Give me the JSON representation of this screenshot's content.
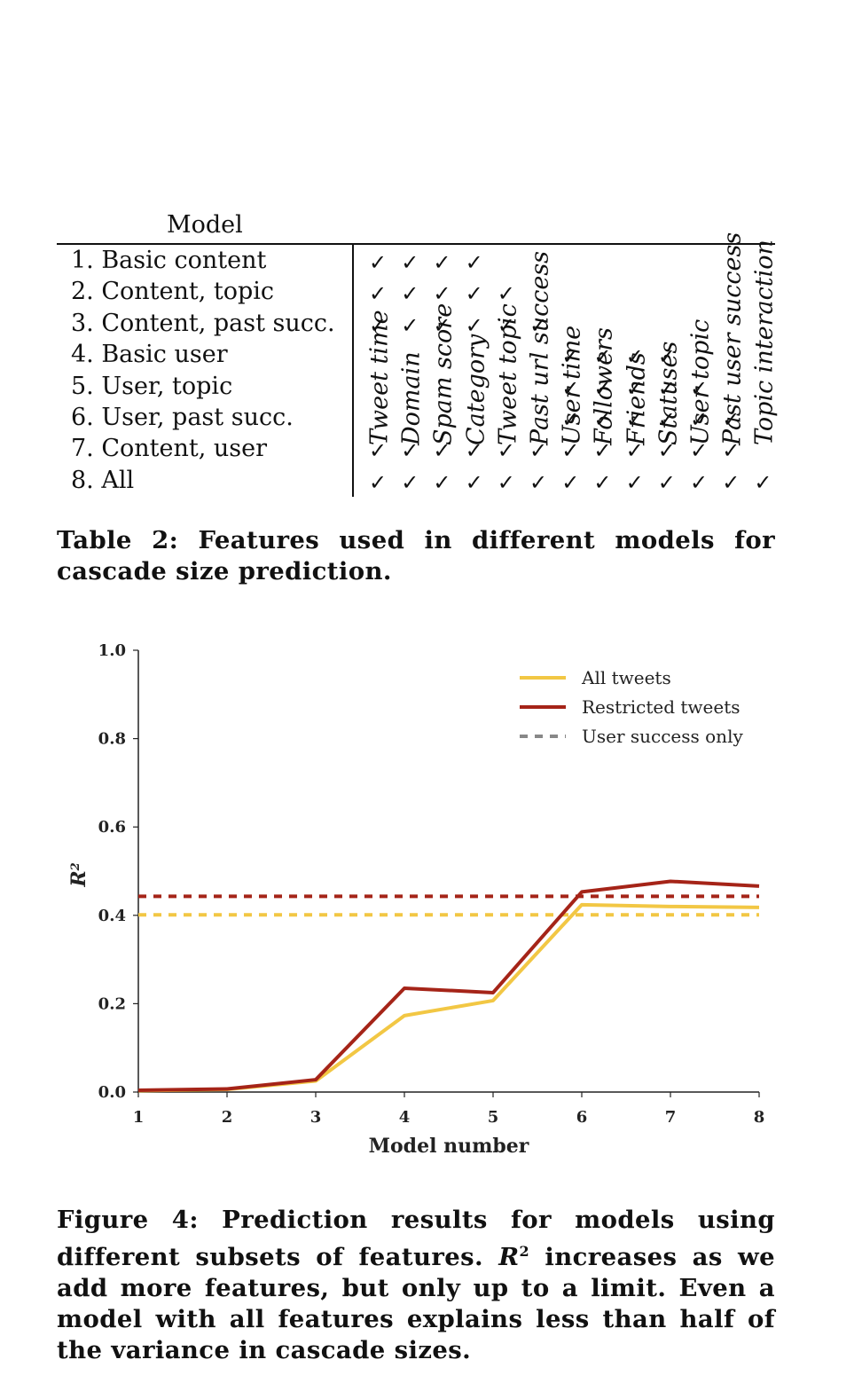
{
  "table": {
    "model_header": "Model",
    "columns": [
      "Tweet time",
      "Domain",
      "Spam score",
      "Category",
      "Tweet topic",
      "Past url success",
      "User time",
      "Followers",
      "Friends",
      "Statuses",
      "User topic",
      "Past user success",
      "Topic interaction"
    ],
    "check_symbol": "✓",
    "rows": [
      {
        "label": "1. Basic content",
        "checks": [
          1,
          1,
          1,
          1,
          0,
          0,
          0,
          0,
          0,
          0,
          0,
          0,
          0
        ]
      },
      {
        "label": "2. Content, topic",
        "checks": [
          1,
          1,
          1,
          1,
          1,
          0,
          0,
          0,
          0,
          0,
          0,
          0,
          0
        ]
      },
      {
        "label": "3. Content, past succ.",
        "checks": [
          1,
          1,
          1,
          1,
          1,
          1,
          0,
          0,
          0,
          0,
          0,
          0,
          0
        ]
      },
      {
        "label": "4. Basic user",
        "checks": [
          0,
          0,
          0,
          0,
          0,
          0,
          1,
          1,
          1,
          1,
          0,
          0,
          0
        ]
      },
      {
        "label": "5. User, topic",
        "checks": [
          0,
          0,
          0,
          0,
          0,
          0,
          1,
          1,
          1,
          1,
          1,
          0,
          0
        ]
      },
      {
        "label": "6. User, past succ.",
        "checks": [
          0,
          0,
          0,
          0,
          0,
          0,
          1,
          1,
          1,
          1,
          1,
          1,
          0
        ]
      },
      {
        "label": "7. Content, user",
        "checks": [
          1,
          1,
          1,
          1,
          1,
          1,
          1,
          1,
          1,
          1,
          1,
          1,
          0
        ]
      },
      {
        "label": "8. All",
        "checks": [
          1,
          1,
          1,
          1,
          1,
          1,
          1,
          1,
          1,
          1,
          1,
          1,
          1
        ]
      }
    ],
    "caption": "Table 2: Features used in different models for cascade size prediction."
  },
  "chart_data": {
    "type": "line",
    "x": [
      1,
      2,
      3,
      4,
      5,
      6,
      7,
      8
    ],
    "xlabel": "Model number",
    "ylabel": "R2",
    "xlim": [
      1,
      8
    ],
    "ylim": [
      0,
      1.0
    ],
    "yticks": [
      "0.0",
      "0.2",
      "0.4",
      "0.6",
      "0.8",
      "1.0"
    ],
    "xticks": [
      "1",
      "2",
      "3",
      "4",
      "5",
      "6",
      "7",
      "8"
    ],
    "series": [
      {
        "name": "All tweets",
        "values": [
          0.003,
          0.006,
          0.025,
          0.173,
          0.207,
          0.424,
          0.42,
          0.418
        ],
        "color": "#f2c744",
        "style": "solid"
      },
      {
        "name": "Restricted tweets",
        "values": [
          0.004,
          0.007,
          0.028,
          0.235,
          0.225,
          0.453,
          0.477,
          0.466
        ],
        "color": "#a52418",
        "style": "solid"
      }
    ],
    "reference_lines": [
      {
        "value": 0.443,
        "color": "#a52418",
        "style": "dashed"
      },
      {
        "value": 0.401,
        "color": "#f2c744",
        "style": "dashed"
      }
    ],
    "legend": {
      "placement": "top-right",
      "entries": [
        {
          "label": "All tweets",
          "color": "#f2c744",
          "style": "solid"
        },
        {
          "label": "Restricted tweets",
          "color": "#a52418",
          "style": "solid"
        },
        {
          "label": "User success only",
          "color": "#888888",
          "style": "dashed"
        }
      ]
    },
    "grid": false
  },
  "figure_caption": {
    "label": "Figure 4:",
    "text_before": "Prediction results for models using different subsets of features.",
    "r_symbol": "R",
    "superscript": "2",
    "text_after": "increases as we add more features, but only up to a limit. Even a model with all features explains less than half of the variance in cascade sizes."
  }
}
